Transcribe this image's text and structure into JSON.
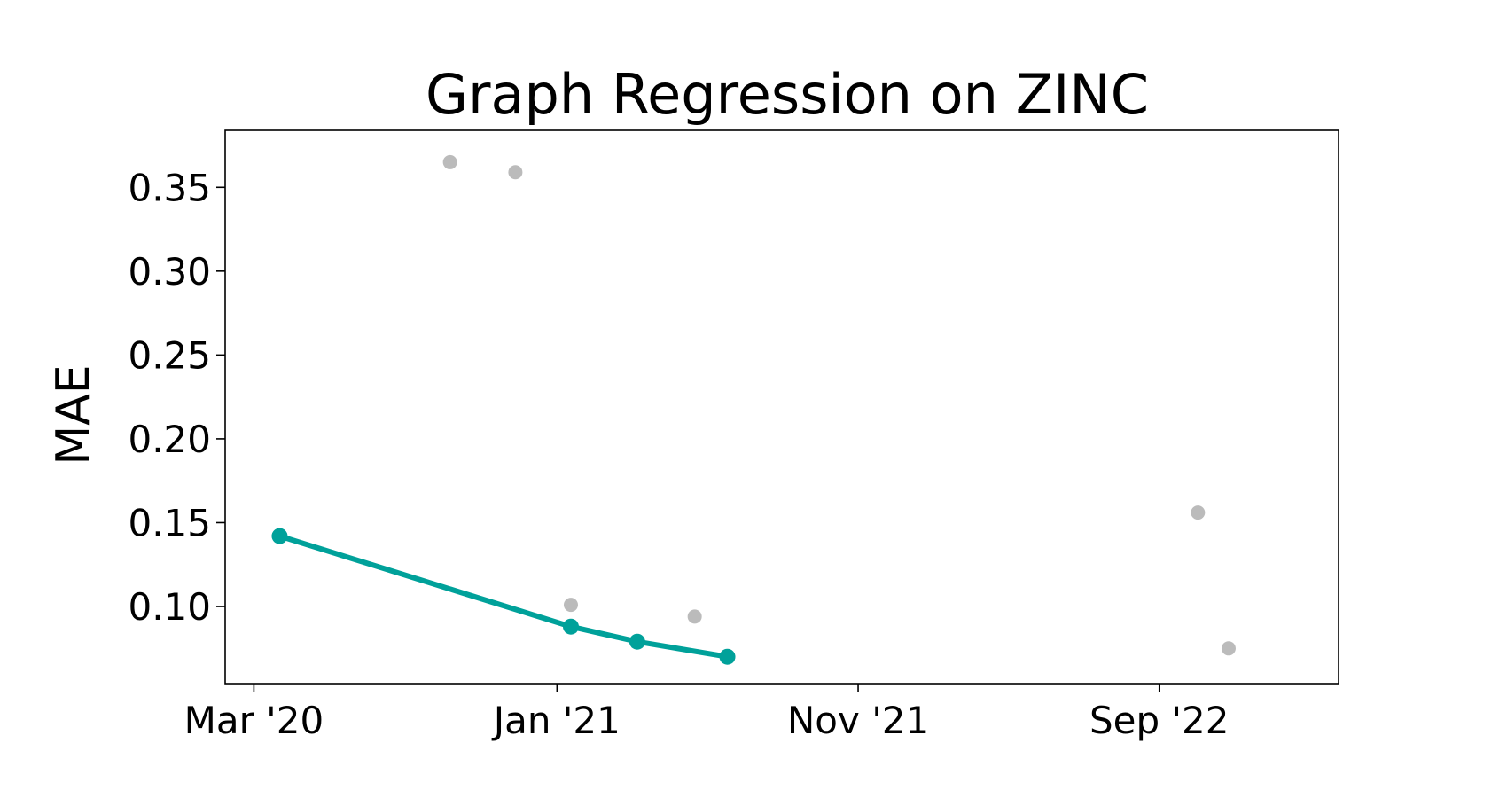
{
  "chart_data": {
    "type": "line",
    "title": "Graph Regression on ZINC",
    "xlabel": "",
    "ylabel": "MAE",
    "x_axis_type": "date",
    "xlim": [
      "2020-02-01",
      "2023-03-01"
    ],
    "ylim": [
      0.054,
      0.384
    ],
    "x_ticks": [
      {
        "value": "2020-03-01",
        "label": "Mar '20"
      },
      {
        "value": "2021-01-01",
        "label": "Jan '21"
      },
      {
        "value": "2021-11-01",
        "label": "Nov '21"
      },
      {
        "value": "2022-09-01",
        "label": "Sep '22"
      }
    ],
    "y_ticks": [
      {
        "value": 0.1,
        "label": "0.10"
      },
      {
        "value": 0.15,
        "label": "0.15"
      },
      {
        "value": 0.2,
        "label": "0.20"
      },
      {
        "value": 0.25,
        "label": "0.25"
      },
      {
        "value": 0.3,
        "label": "0.30"
      },
      {
        "value": 0.35,
        "label": "0.35"
      }
    ],
    "grid": false,
    "legend": "none",
    "series": [
      {
        "role": "state-of-the-art",
        "color": "#00a19a",
        "style": "line-with-markers",
        "points": [
          {
            "x": "2020-03-27",
            "y": 0.142
          },
          {
            "x": "2021-01-15",
            "y": 0.088
          },
          {
            "x": "2021-03-23",
            "y": 0.079
          },
          {
            "x": "2021-06-22",
            "y": 0.07
          }
        ]
      },
      {
        "role": "other-methods",
        "color": "#bbbbbb",
        "style": "scatter",
        "points": [
          {
            "x": "2020-09-15",
            "y": 0.365
          },
          {
            "x": "2020-11-20",
            "y": 0.359
          },
          {
            "x": "2021-01-15",
            "y": 0.101
          },
          {
            "x": "2021-05-20",
            "y": 0.094
          },
          {
            "x": "2022-10-10",
            "y": 0.156
          },
          {
            "x": "2022-11-10",
            "y": 0.075
          }
        ]
      }
    ]
  }
}
